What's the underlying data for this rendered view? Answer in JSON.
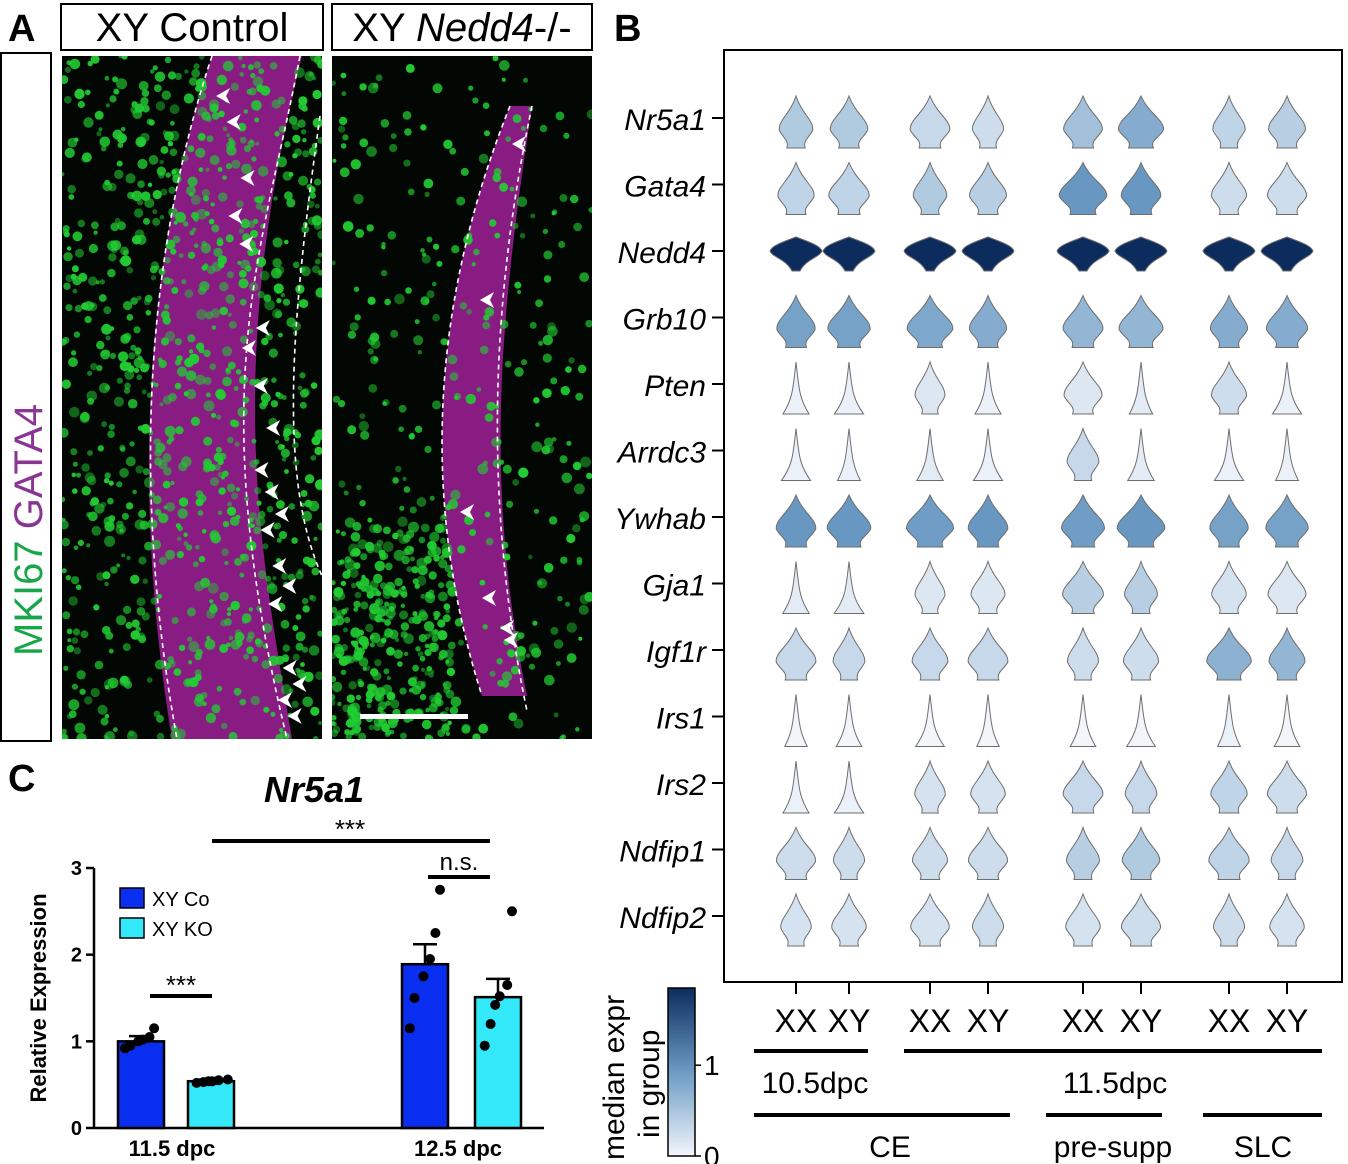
{
  "panels": {
    "a": "A",
    "b": "B",
    "c": "C"
  },
  "panel_a": {
    "headers": {
      "control": "XY Control",
      "ko_prefix": "XY ",
      "ko_gene": "Nedd4",
      "ko_suffix": "-/-"
    },
    "stain_labels": {
      "mki67": "MKI67",
      "gata4": "GATA4"
    },
    "colors": {
      "mki67": "#22cc33",
      "gata4": "#a0209a",
      "arrow": "#ffffff"
    },
    "arrowheads": {
      "control": 30,
      "ko": 6
    }
  },
  "chart_data": [
    {
      "type": "violin",
      "panel": "B",
      "genes": [
        "Nr5a1",
        "Gata4",
        "Nedd4",
        "Grb10",
        "Pten",
        "Arrdc3",
        "Ywhab",
        "Gja1",
        "Igf1r",
        "Irs1",
        "Irs2",
        "Ndfip1",
        "Ndfip2"
      ],
      "groups": [
        "XX",
        "XY",
        "XX",
        "XY",
        "XX",
        "XY",
        "XX",
        "XY"
      ],
      "stage_labels": [
        {
          "label": "10.5dpc",
          "groups": [
            0,
            1
          ]
        },
        {
          "label": "11.5dpc",
          "groups": [
            2,
            3,
            4,
            5,
            6,
            7
          ]
        }
      ],
      "celltype_labels": [
        {
          "label": "CE",
          "groups": [
            0,
            1,
            2,
            3
          ]
        },
        {
          "label": "pre-supp",
          "groups": [
            4,
            5
          ]
        },
        {
          "label": "SLC",
          "groups": [
            6,
            7
          ]
        }
      ],
      "median_expr": [
        [
          0.45,
          0.45,
          0.3,
          0.25,
          0.55,
          0.75,
          0.35,
          0.4
        ],
        [
          0.35,
          0.35,
          0.45,
          0.4,
          0.95,
          0.95,
          0.25,
          0.25
        ],
        [
          1.85,
          1.85,
          1.85,
          1.85,
          1.85,
          1.85,
          1.85,
          1.85
        ],
        [
          0.85,
          0.85,
          0.8,
          0.75,
          0.65,
          0.65,
          0.75,
          0.75
        ],
        [
          0.05,
          0.05,
          0.15,
          0.05,
          0.15,
          0.1,
          0.25,
          0.05
        ],
        [
          0.05,
          0.05,
          0.1,
          0.05,
          0.3,
          0.1,
          0.05,
          0.05
        ],
        [
          0.95,
          0.95,
          0.9,
          0.95,
          0.9,
          0.95,
          0.85,
          0.85
        ],
        [
          0.1,
          0.1,
          0.15,
          0.15,
          0.4,
          0.4,
          0.2,
          0.15
        ],
        [
          0.3,
          0.3,
          0.3,
          0.3,
          0.25,
          0.25,
          0.7,
          0.65
        ],
        [
          0.0,
          0.0,
          0.0,
          0.0,
          0.0,
          0.0,
          0.05,
          0.0
        ],
        [
          0.05,
          0.05,
          0.2,
          0.2,
          0.3,
          0.3,
          0.35,
          0.25
        ],
        [
          0.25,
          0.25,
          0.25,
          0.25,
          0.4,
          0.45,
          0.35,
          0.3
        ],
        [
          0.2,
          0.2,
          0.2,
          0.25,
          0.2,
          0.25,
          0.25,
          0.2
        ]
      ],
      "colorbar": {
        "title_line1": "median expr",
        "title_line2": "in group",
        "range": [
          0,
          1.85
        ],
        "ticks": [
          0,
          1
        ],
        "tick_labels": [
          "0",
          "1"
        ]
      },
      "colors": {
        "low": "#f2f6fb",
        "mid": "#6b9bc4",
        "high": "#0c2c5e"
      }
    },
    {
      "type": "bar",
      "panel": "C",
      "title": "Nr5a1",
      "ylabel": "Relative Expression",
      "ylim": [
        0,
        3
      ],
      "yticks": [
        0,
        1,
        2,
        3
      ],
      "ytick_labels": [
        "0",
        "1",
        "2",
        "3"
      ],
      "categories": [
        "11.5 dpc",
        "12.5 dpc"
      ],
      "series": [
        {
          "name": "XY Co",
          "color": "#0a2ef0",
          "values": [
            1.0,
            1.89
          ],
          "sem": [
            0.06,
            0.23
          ],
          "points": [
            [
              0.92,
              0.95,
              1.0,
              1.02,
              1.05,
              1.15
            ],
            [
              1.15,
              1.5,
              1.75,
              1.95,
              2.25,
              2.75
            ]
          ]
        },
        {
          "name": "XY KO",
          "color": "#33e8f8",
          "values": [
            0.54,
            1.51
          ],
          "sem": [
            0.02,
            0.21
          ],
          "points": [
            [
              0.52,
              0.53,
              0.54,
              0.54,
              0.55,
              0.56
            ],
            [
              0.95,
              1.2,
              1.42,
              1.52,
              1.65,
              2.5
            ]
          ]
        }
      ],
      "significance": [
        {
          "label": "***",
          "between": "11.5 dpc XY Co vs XY KO"
        },
        {
          "label": "n.s.",
          "between": "12.5 dpc XY Co vs XY KO"
        },
        {
          "label": "***",
          "between": "11.5 dpc vs 12.5 dpc"
        }
      ]
    }
  ]
}
